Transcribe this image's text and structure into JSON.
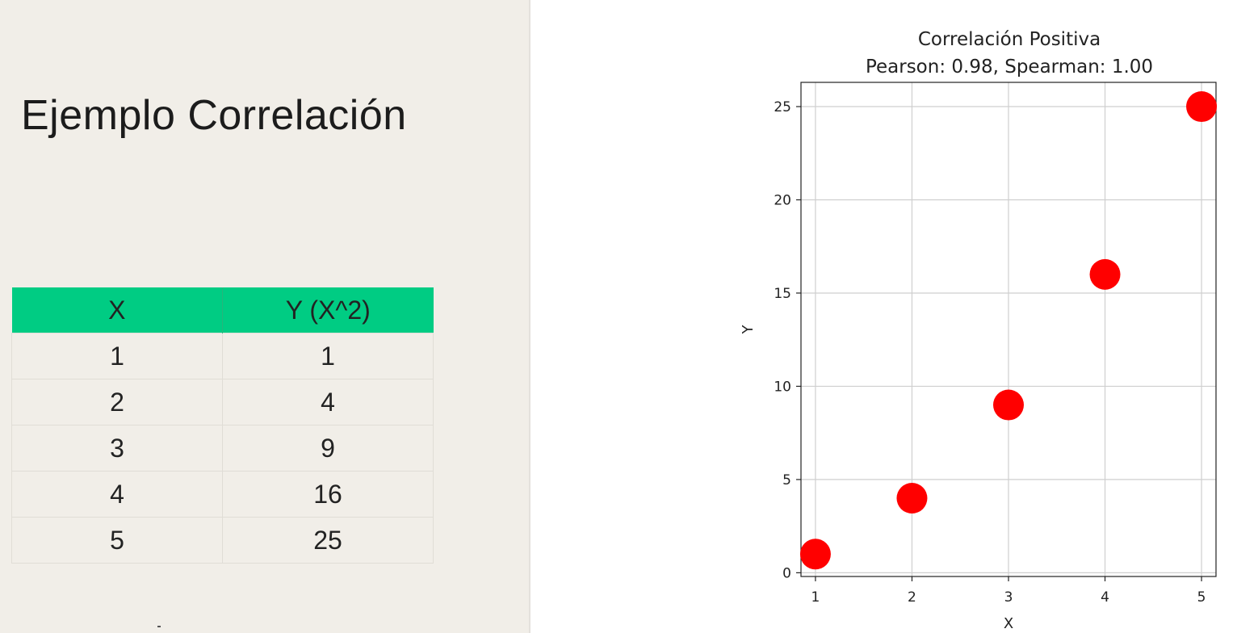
{
  "slide": {
    "title": "Ejemplo Correlación",
    "accent_color": "#00cc83",
    "background_color": "#f1eee8"
  },
  "table": {
    "headers": [
      "X",
      "Y (X^2)"
    ],
    "rows": [
      [
        "1",
        "1"
      ],
      [
        "2",
        "4"
      ],
      [
        "3",
        "9"
      ],
      [
        "4",
        "16"
      ],
      [
        "5",
        "25"
      ]
    ]
  },
  "chart_data": {
    "type": "scatter",
    "title": "Correlación Positiva",
    "subtitle": "Pearson: 0.98, Spearman: 1.00",
    "xlabel": "X",
    "ylabel": "Y",
    "x": [
      1,
      2,
      3,
      4,
      5
    ],
    "y": [
      1,
      4,
      9,
      16,
      25
    ],
    "xlim": [
      0.85,
      5.15
    ],
    "ylim": [
      -0.2,
      26.3
    ],
    "xticks": [
      1,
      2,
      3,
      4,
      5
    ],
    "yticks": [
      0,
      5,
      10,
      15,
      20,
      25
    ],
    "grid": true,
    "marker_color": "#ff0000"
  }
}
